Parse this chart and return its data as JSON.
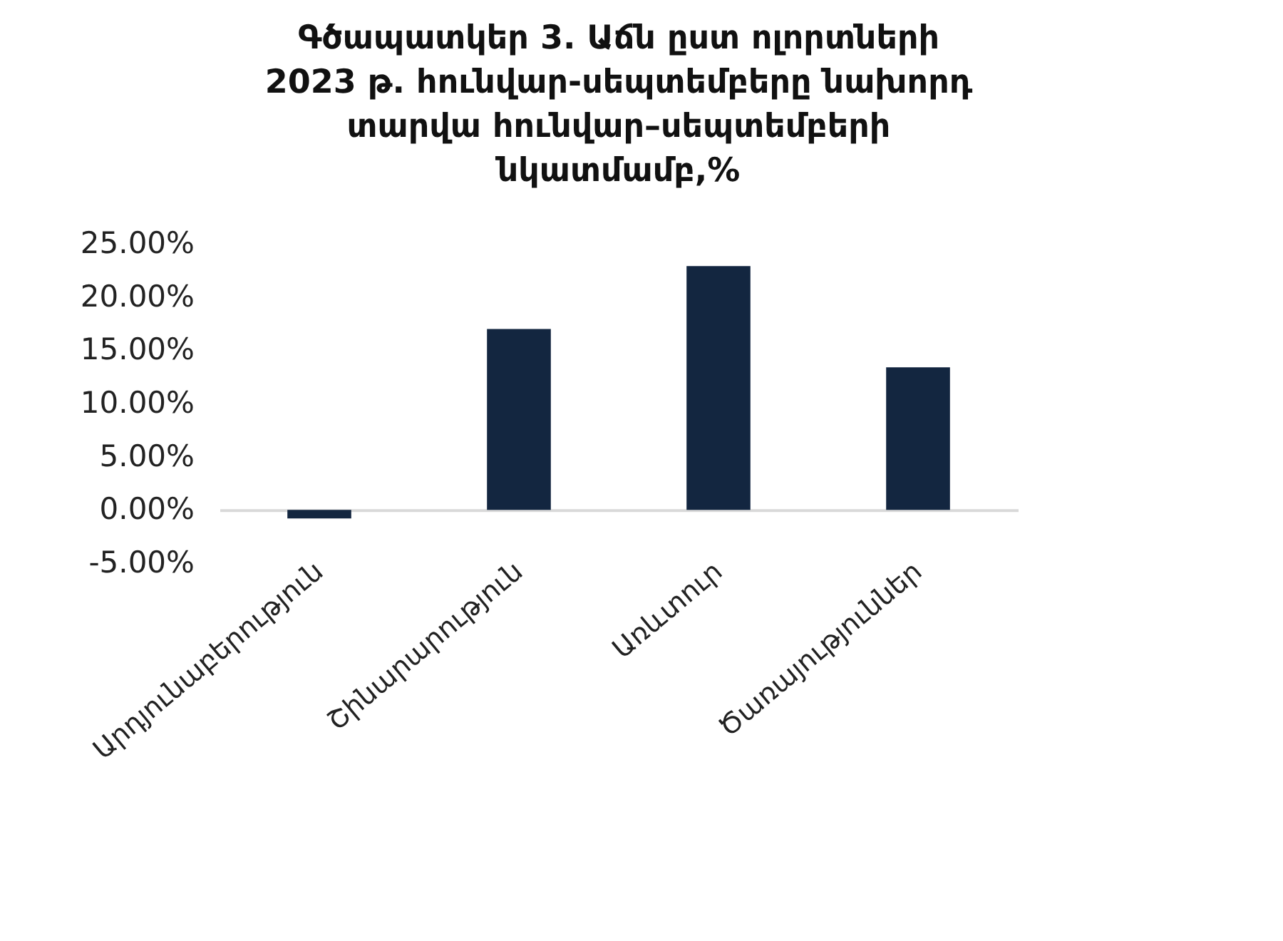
{
  "chart_data": {
    "type": "bar",
    "title": "Գծապատկեր 3. Աճն ըստ ոլորտների 2023 թ. հունվար-սեպտեմբերը նախորդ տարվա հունվար–սեպտեմբերի նկատմամբ,%",
    "categories": [
      "Արդյունաբերություն",
      "Շինարարություն",
      "Առևտուր",
      "Ծառայություններ"
    ],
    "values": [
      -0.8,
      17.0,
      22.9,
      13.4
    ],
    "color": "#132640",
    "ylim": [
      -5,
      25
    ],
    "yticks": [
      {
        "value": -5,
        "label": "-5.00%"
      },
      {
        "value": 0,
        "label": "0.00%"
      },
      {
        "value": 5,
        "label": "5.00%"
      },
      {
        "value": 10,
        "label": "10.00%"
      },
      {
        "value": 15,
        "label": "15.00%"
      },
      {
        "value": 20,
        "label": "20.00%"
      },
      {
        "value": 25,
        "label": "25.00%"
      }
    ],
    "grid": false
  }
}
